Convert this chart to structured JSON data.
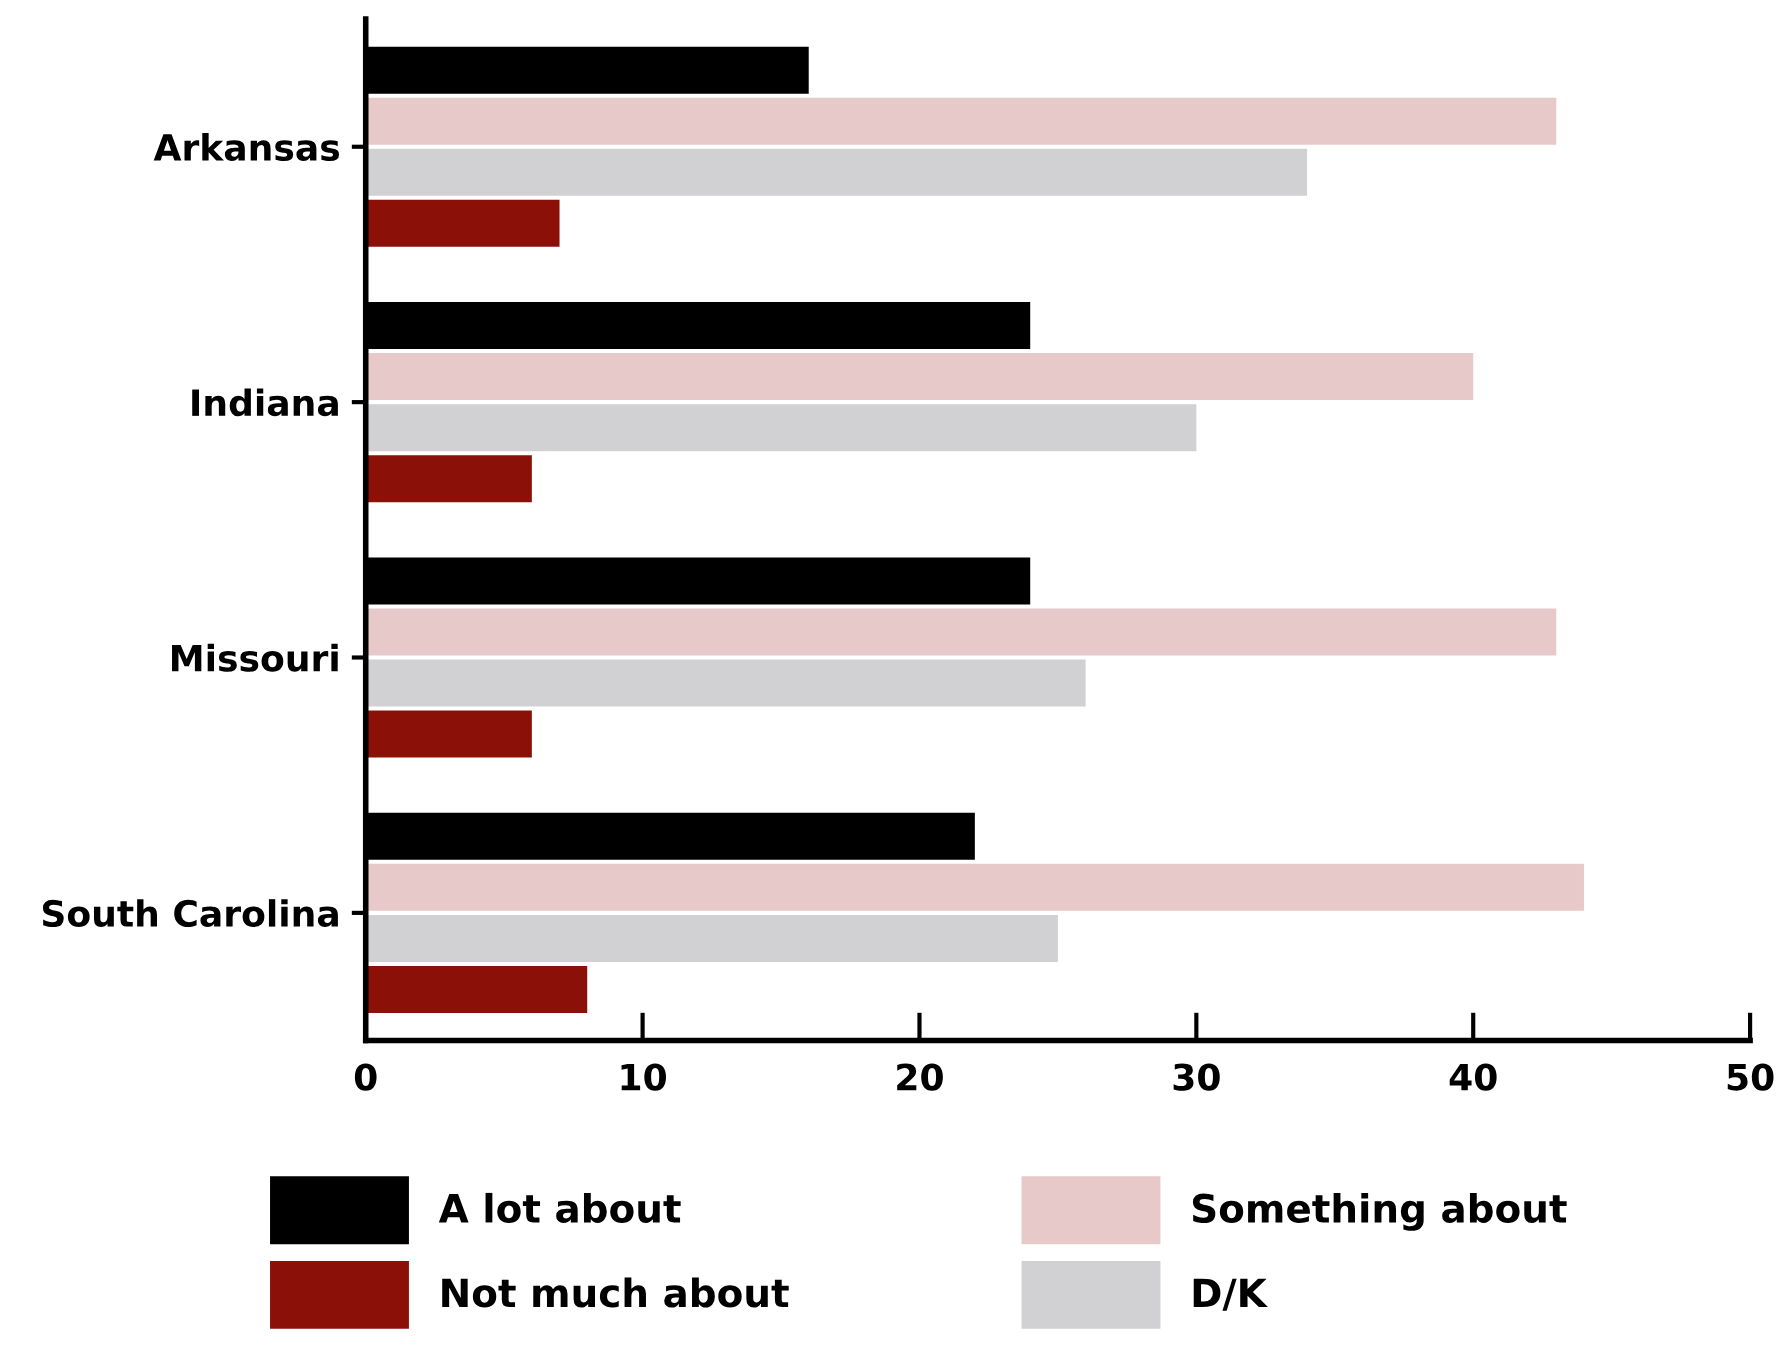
{
  "chart_data": {
    "type": "bar",
    "orientation": "horizontal",
    "categories": [
      "Arkansas",
      "Indiana",
      "Missouri",
      "South Carolina"
    ],
    "series": [
      {
        "name": "A lot about",
        "color": "#000000",
        "values": [
          16,
          24,
          24,
          22
        ]
      },
      {
        "name": "Something about",
        "color": "#e8c9c9",
        "values": [
          43,
          40,
          43,
          44
        ]
      },
      {
        "name": "D/K",
        "color": "#d1d1d3",
        "values": [
          34,
          30,
          26,
          25
        ]
      },
      {
        "name": "Not much about",
        "color": "#8b1007",
        "values": [
          7,
          6,
          6,
          8
        ]
      }
    ],
    "xlim": [
      0,
      50
    ],
    "xticks": [
      0,
      10,
      20,
      30,
      40,
      50
    ],
    "grid": false,
    "legend": "bottom"
  }
}
